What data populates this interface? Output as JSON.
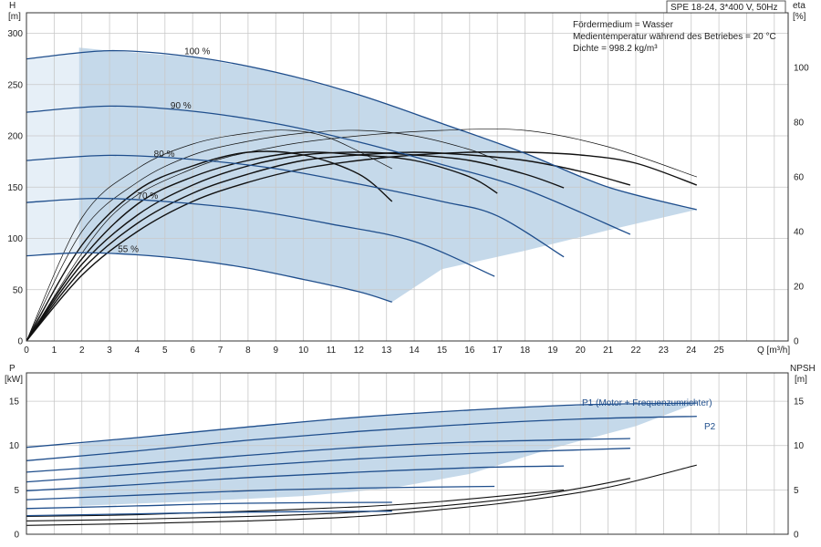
{
  "chart_data": [
    {
      "type": "line",
      "title": "SPE 18-24, 3*400 V, 50Hz",
      "info": [
        "Fördermedium = Wasser",
        "Medientemperatur während des Betriebes = 20 °C",
        "Dichte = 998.2 kg/m³"
      ],
      "xlabel": "Q [m³/h]",
      "ylabel_top": "H",
      "ylabel_unit": "[m]",
      "y2label_top": "eta",
      "y2label_unit": "[%]",
      "xlim": [
        0,
        27.5
      ],
      "ylim": [
        0,
        320
      ],
      "y2lim": [
        0,
        120
      ],
      "xticks": [
        "0",
        "1",
        "2",
        "3",
        "4",
        "5",
        "6",
        "7",
        "8",
        "9",
        "10",
        "11",
        "12",
        "13",
        "14",
        "15",
        "16",
        "17",
        "18",
        "19",
        "20",
        "21",
        "22",
        "23",
        "24",
        "25"
      ],
      "yticks": [
        "0",
        "50",
        "100",
        "150",
        "200",
        "250",
        "300"
      ],
      "y2ticks": [
        "0",
        "20",
        "40",
        "60",
        "80",
        "100"
      ],
      "grid": true,
      "colors": {
        "head": "#1f4e8c",
        "area": "#c5d9ea",
        "area_light": "#e6eff7",
        "eta": "#111111"
      },
      "head_curves": [
        {
          "label": "100 %",
          "label_x": 5.7,
          "points": [
            [
              0,
              275
            ],
            [
              3,
              283
            ],
            [
              6,
              277
            ],
            [
              9,
              262
            ],
            [
              12,
              240
            ],
            [
              15,
              212
            ],
            [
              18,
              183
            ],
            [
              21,
              150
            ],
            [
              24.2,
              128
            ]
          ]
        },
        {
          "label": "90 %",
          "label_x": 5.2,
          "points": [
            [
              0,
              223
            ],
            [
              3,
              229
            ],
            [
              6,
              224
            ],
            [
              9,
              212
            ],
            [
              12,
              194
            ],
            [
              15,
              172
            ],
            [
              18,
              148
            ],
            [
              21.8,
              104
            ]
          ]
        },
        {
          "label": "80 %",
          "label_x": 4.6,
          "points": [
            [
              0,
              176
            ],
            [
              3,
              181
            ],
            [
              6,
              177
            ],
            [
              9,
              168
            ],
            [
              12,
              153
            ],
            [
              15,
              136
            ],
            [
              17,
              122
            ],
            [
              19.4,
              82
            ]
          ]
        },
        {
          "label": "70 %",
          "label_x": 4.0,
          "points": [
            [
              0,
              135
            ],
            [
              2.5,
              139
            ],
            [
              5,
              136
            ],
            [
              8,
              128
            ],
            [
              11,
              114
            ],
            [
              14,
              97
            ],
            [
              16.9,
              63
            ]
          ]
        },
        {
          "label": "55 %",
          "label_x": 3.3,
          "points": [
            [
              0,
              83
            ],
            [
              2,
              86
            ],
            [
              4,
              84
            ],
            [
              6,
              79
            ],
            [
              8,
              71
            ],
            [
              10,
              60
            ],
            [
              12,
              48
            ],
            [
              13.2,
              38
            ]
          ]
        }
      ],
      "area_polygon": [
        [
          1.9,
          286
        ],
        [
          3,
          283
        ],
        [
          6,
          277
        ],
        [
          9,
          262
        ],
        [
          12,
          240
        ],
        [
          15,
          212
        ],
        [
          18,
          183
        ],
        [
          21,
          150
        ],
        [
          24.2,
          128
        ],
        [
          21,
          108
        ],
        [
          18,
          88
        ],
        [
          15,
          70
        ],
        [
          13.2,
          38
        ],
        [
          12,
          48
        ],
        [
          10,
          60
        ],
        [
          8,
          71
        ],
        [
          6,
          79
        ],
        [
          4,
          84
        ],
        [
          1.9,
          86
        ]
      ],
      "eta_curves": [
        {
          "end_x": 13.2,
          "points": [
            [
              0,
              0
            ],
            [
              2,
              35
            ],
            [
              4,
              55
            ],
            [
              6,
              64
            ],
            [
              8,
              69
            ],
            [
              10,
              68
            ],
            [
              12,
              61
            ],
            [
              13.2,
              51
            ]
          ]
        },
        {
          "end_x": 17,
          "points": [
            [
              0,
              0
            ],
            [
              2,
              30
            ],
            [
              4,
              50
            ],
            [
              6,
              60
            ],
            [
              8,
              66
            ],
            [
              10,
              69
            ],
            [
              12,
              68
            ],
            [
              14,
              66
            ],
            [
              16,
              60
            ],
            [
              17,
              54
            ]
          ]
        },
        {
          "end_x": 19.4,
          "points": [
            [
              0,
              0
            ],
            [
              2,
              28
            ],
            [
              4,
              46
            ],
            [
              6,
              57
            ],
            [
              8,
              64
            ],
            [
              10,
              68
            ],
            [
              12,
              69
            ],
            [
              14,
              68
            ],
            [
              16,
              66
            ],
            [
              18,
              61
            ],
            [
              19.4,
              56
            ]
          ]
        },
        {
          "end_x": 21.8,
          "points": [
            [
              0,
              0
            ],
            [
              2,
              26
            ],
            [
              4,
              43
            ],
            [
              6,
              54
            ],
            [
              8,
              61
            ],
            [
              10,
              66
            ],
            [
              12,
              68
            ],
            [
              14,
              69
            ],
            [
              16,
              68
            ],
            [
              18,
              66
            ],
            [
              20,
              62
            ],
            [
              21.8,
              57
            ]
          ]
        },
        {
          "end_x": 24.2,
          "points": [
            [
              0,
              0
            ],
            [
              2,
              24
            ],
            [
              4,
              40
            ],
            [
              6,
              51
            ],
            [
              8,
              58
            ],
            [
              10,
              63
            ],
            [
              12,
              66
            ],
            [
              14,
              68
            ],
            [
              16,
              69
            ],
            [
              18,
              69
            ],
            [
              20,
              68
            ],
            [
              22,
              65
            ],
            [
              24.2,
              57
            ]
          ]
        },
        {
          "end_x": 13.2,
          "points": [
            [
              0,
              0
            ],
            [
              2,
              45
            ],
            [
              4,
              63
            ],
            [
              6,
              72
            ],
            [
              8,
              76
            ],
            [
              9.5,
              77
            ],
            [
              11,
              74
            ],
            [
              13.2,
              63
            ]
          ]
        },
        {
          "end_x": 17,
          "points": [
            [
              0,
              0
            ],
            [
              2,
              40
            ],
            [
              4,
              58
            ],
            [
              6,
              68
            ],
            [
              8,
              73
            ],
            [
              10,
              76
            ],
            [
              12,
              77
            ],
            [
              14,
              75
            ],
            [
              16,
              70
            ],
            [
              17,
              66
            ]
          ]
        },
        {
          "end_x": 24.2,
          "points": [
            [
              0,
              0
            ],
            [
              3,
              45
            ],
            [
              6,
              63
            ],
            [
              9,
              71
            ],
            [
              12,
              75
            ],
            [
              15,
              77
            ],
            [
              18,
              77
            ],
            [
              21,
              71
            ],
            [
              24.2,
              60
            ]
          ]
        }
      ]
    },
    {
      "type": "line",
      "ylabel_top": "P",
      "ylabel_unit": "[kW]",
      "y2label_top": "NPSH",
      "y2label_unit": "[m]",
      "xlim": [
        0,
        27.5
      ],
      "ylim": [
        0,
        18.2
      ],
      "y2lim": [
        0,
        18.2
      ],
      "yticks": [
        "0",
        "5",
        "10",
        "15"
      ],
      "y2ticks": [
        "0",
        "5",
        "10",
        "15"
      ],
      "grid": true,
      "labels": {
        "p1": "P1 (Motor + Frequenzumrichter)",
        "p2": "P2"
      },
      "colors": {
        "power": "#1f4e8c",
        "area": "#c5d9ea",
        "npsh": "#111111"
      },
      "area_polygon": [
        [
          1.9,
          10.2
        ],
        [
          6,
          11.6
        ],
        [
          12,
          13.3
        ],
        [
          18,
          14.4
        ],
        [
          24.2,
          14.8
        ],
        [
          22,
          12.2
        ],
        [
          19,
          9.7
        ],
        [
          16,
          6.8
        ],
        [
          13.2,
          5.2
        ],
        [
          10,
          4.3
        ],
        [
          6,
          3.7
        ],
        [
          1.9,
          3.2
        ]
      ],
      "power_curves": [
        {
          "end_x": 24.2,
          "points": [
            [
              0,
              9.8
            ],
            [
              4,
              10.9
            ],
            [
              8,
              12.1
            ],
            [
              12,
              13.2
            ],
            [
              16,
              14.0
            ],
            [
              20,
              14.6
            ],
            [
              24.2,
              14.8
            ]
          ]
        },
        {
          "end_x": 24.2,
          "points": [
            [
              0,
              8.3
            ],
            [
              4,
              9.4
            ],
            [
              8,
              10.6
            ],
            [
              12,
              11.6
            ],
            [
              16,
              12.4
            ],
            [
              20,
              13.0
            ],
            [
              24.2,
              13.3
            ]
          ]
        },
        {
          "end_x": 21.8,
          "points": [
            [
              0,
              7.0
            ],
            [
              4,
              7.9
            ],
            [
              8,
              8.9
            ],
            [
              12,
              9.8
            ],
            [
              16,
              10.4
            ],
            [
              21.8,
              10.8
            ]
          ]
        },
        {
          "end_x": 21.8,
          "points": [
            [
              0,
              5.9
            ],
            [
              4,
              6.8
            ],
            [
              8,
              7.7
            ],
            [
              12,
              8.5
            ],
            [
              16,
              9.1
            ],
            [
              21.8,
              9.7
            ]
          ]
        },
        {
          "end_x": 19.4,
          "points": [
            [
              0,
              4.9
            ],
            [
              4,
              5.6
            ],
            [
              8,
              6.4
            ],
            [
              12,
              7.0
            ],
            [
              16,
              7.5
            ],
            [
              19.4,
              7.7
            ]
          ]
        },
        {
          "end_x": 16.9,
          "points": [
            [
              0,
              3.9
            ],
            [
              4,
              4.4
            ],
            [
              8,
              4.9
            ],
            [
              12,
              5.2
            ],
            [
              16.9,
              5.4
            ]
          ]
        },
        {
          "end_x": 13.2,
          "points": [
            [
              0,
              2.9
            ],
            [
              4,
              3.2
            ],
            [
              8,
              3.5
            ],
            [
              13.2,
              3.6
            ]
          ]
        },
        {
          "end_x": 13.2,
          "points": [
            [
              0,
              2.1
            ],
            [
              4,
              2.3
            ],
            [
              8,
              2.5
            ],
            [
              13.2,
              2.6
            ]
          ]
        }
      ],
      "npsh_curves": [
        {
          "end_x": 24.2,
          "points": [
            [
              0,
              1.0
            ],
            [
              4,
              1.2
            ],
            [
              8,
              1.5
            ],
            [
              12,
              2.0
            ],
            [
              15,
              2.8
            ],
            [
              18,
              3.8
            ],
            [
              21,
              5.3
            ],
            [
              24.2,
              7.8
            ]
          ]
        },
        {
          "end_x": 21.8,
          "points": [
            [
              0,
              1.5
            ],
            [
              4,
              1.7
            ],
            [
              8,
              2.0
            ],
            [
              12,
              2.5
            ],
            [
              15,
              3.2
            ],
            [
              18,
              4.2
            ],
            [
              20,
              5.2
            ],
            [
              21.8,
              6.3
            ]
          ]
        },
        {
          "end_x": 19.4,
          "points": [
            [
              0,
              2.0
            ],
            [
              4,
              2.2
            ],
            [
              8,
              2.6
            ],
            [
              12,
              3.1
            ],
            [
              15,
              3.7
            ],
            [
              19.4,
              5.0
            ]
          ]
        }
      ]
    }
  ]
}
